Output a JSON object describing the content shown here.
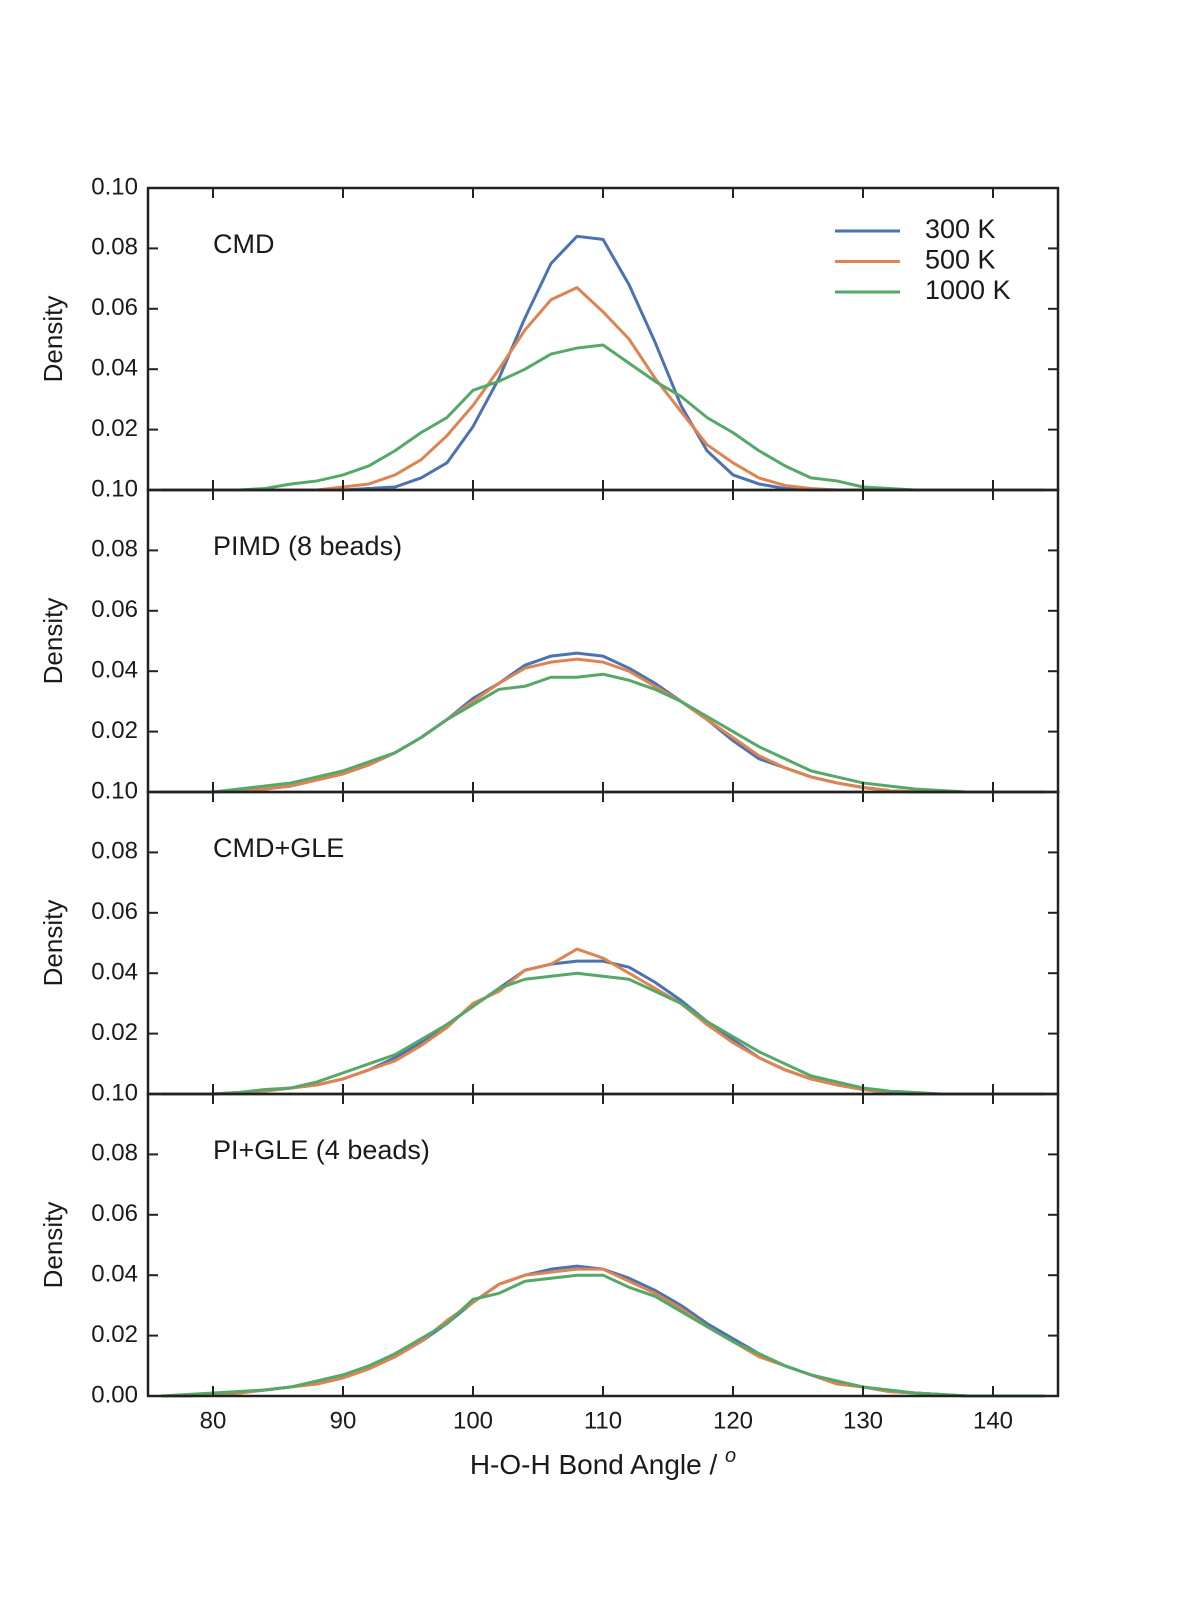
{
  "chart_data": [
    {
      "type": "line",
      "label": "CMD",
      "ylabel": "Density",
      "legend": "upper right",
      "x": [
        76,
        78,
        80,
        82,
        84,
        86,
        88,
        90,
        92,
        94,
        96,
        98,
        100,
        102,
        104,
        106,
        108,
        110,
        112,
        114,
        116,
        118,
        120,
        122,
        124,
        126,
        128,
        130,
        132,
        134,
        136,
        138,
        140,
        142,
        144
      ],
      "series": [
        {
          "name": "300 K",
          "color": "#4c72b0",
          "values": [
            0,
            0,
            0,
            0,
            0,
            0,
            0,
            0,
            0.0005,
            0.001,
            0.004,
            0.009,
            0.021,
            0.037,
            0.057,
            0.075,
            0.084,
            0.083,
            0.068,
            0.049,
            0.028,
            0.013,
            0.005,
            0.002,
            0.0005,
            0,
            0,
            0,
            0,
            0,
            0,
            0,
            0,
            0,
            0
          ]
        },
        {
          "name": "500 K",
          "color": "#dd8452",
          "values": [
            0,
            0,
            0,
            0,
            0,
            0,
            0,
            0.001,
            0.002,
            0.005,
            0.01,
            0.018,
            0.028,
            0.04,
            0.053,
            0.063,
            0.067,
            0.059,
            0.05,
            0.037,
            0.026,
            0.015,
            0.009,
            0.004,
            0.0015,
            0.0005,
            0,
            0,
            0,
            0,
            0,
            0,
            0,
            0,
            0
          ]
        },
        {
          "name": "1000 K",
          "color": "#55a868",
          "values": [
            0,
            0,
            0,
            0,
            0.0005,
            0.002,
            0.003,
            0.005,
            0.008,
            0.013,
            0.019,
            0.024,
            0.033,
            0.036,
            0.04,
            0.045,
            0.047,
            0.048,
            0.042,
            0.036,
            0.031,
            0.024,
            0.019,
            0.013,
            0.008,
            0.004,
            0.003,
            0.001,
            0.0005,
            0,
            0,
            0,
            0,
            0,
            0
          ]
        }
      ],
      "xlim": [
        75,
        145
      ],
      "ylim": [
        0,
        0.1
      ],
      "yticks": [
        {
          "value": 0.02,
          "label": "0.02"
        },
        {
          "value": 0.04,
          "label": "0.04"
        },
        {
          "value": 0.06,
          "label": "0.06"
        },
        {
          "value": 0.08,
          "label": "0.08"
        },
        {
          "value": 0.1,
          "label": "0.10"
        }
      ]
    },
    {
      "type": "line",
      "label": "PIMD (8 beads)",
      "ylabel": "Density",
      "x": [
        76,
        78,
        80,
        82,
        84,
        86,
        88,
        90,
        92,
        94,
        96,
        98,
        100,
        102,
        104,
        106,
        108,
        110,
        112,
        114,
        116,
        118,
        120,
        122,
        124,
        126,
        128,
        130,
        132,
        134,
        136,
        138,
        140,
        142,
        144
      ],
      "series": [
        {
          "color": "#4c72b0",
          "values": [
            0,
            0,
            0,
            0.0005,
            0.001,
            0.002,
            0.004,
            0.006,
            0.009,
            0.013,
            0.018,
            0.024,
            0.031,
            0.036,
            0.042,
            0.045,
            0.046,
            0.045,
            0.041,
            0.036,
            0.03,
            0.024,
            0.017,
            0.011,
            0.008,
            0.005,
            0.003,
            0.0015,
            0.0005,
            0,
            0,
            0,
            0,
            0,
            0
          ]
        },
        {
          "color": "#dd8452",
          "values": [
            0,
            0,
            0,
            0.0005,
            0.001,
            0.002,
            0.004,
            0.006,
            0.009,
            0.013,
            0.018,
            0.024,
            0.03,
            0.036,
            0.041,
            0.043,
            0.044,
            0.043,
            0.04,
            0.035,
            0.03,
            0.024,
            0.018,
            0.012,
            0.008,
            0.005,
            0.003,
            0.0015,
            0.0005,
            0,
            0,
            0,
            0,
            0,
            0
          ]
        },
        {
          "color": "#55a868",
          "values": [
            0,
            0,
            0,
            0.001,
            0.002,
            0.003,
            0.005,
            0.007,
            0.01,
            0.013,
            0.018,
            0.024,
            0.029,
            0.034,
            0.035,
            0.038,
            0.038,
            0.039,
            0.037,
            0.034,
            0.03,
            0.025,
            0.02,
            0.015,
            0.011,
            0.007,
            0.005,
            0.003,
            0.002,
            0.001,
            0.0005,
            0,
            0,
            0,
            0
          ]
        }
      ],
      "xlim": [
        75,
        145
      ],
      "ylim": [
        0,
        0.1
      ],
      "yticks": [
        {
          "value": 0.02,
          "label": "0.02"
        },
        {
          "value": 0.04,
          "label": "0.04"
        },
        {
          "value": 0.06,
          "label": "0.06"
        },
        {
          "value": 0.08,
          "label": "0.08"
        },
        {
          "value": 0.1,
          "label": "0.10"
        }
      ]
    },
    {
      "type": "line",
      "label": "CMD+GLE",
      "ylabel": "Density",
      "x": [
        76,
        78,
        80,
        82,
        84,
        86,
        88,
        90,
        92,
        94,
        96,
        98,
        100,
        102,
        104,
        106,
        108,
        110,
        112,
        114,
        116,
        118,
        120,
        122,
        124,
        126,
        128,
        130,
        132,
        134,
        136,
        138,
        140,
        142,
        144
      ],
      "series": [
        {
          "color": "#4c72b0",
          "values": [
            0,
            0,
            0,
            0.0005,
            0.001,
            0.002,
            0.003,
            0.005,
            0.008,
            0.012,
            0.017,
            0.023,
            0.029,
            0.035,
            0.041,
            0.043,
            0.044,
            0.044,
            0.042,
            0.037,
            0.031,
            0.024,
            0.018,
            0.012,
            0.008,
            0.005,
            0.003,
            0.0015,
            0.0005,
            0,
            0,
            0,
            0,
            0,
            0
          ]
        },
        {
          "color": "#dd8452",
          "values": [
            0,
            0,
            0,
            0.0005,
            0.001,
            0.002,
            0.003,
            0.005,
            0.008,
            0.011,
            0.016,
            0.022,
            0.03,
            0.034,
            0.041,
            0.043,
            0.048,
            0.045,
            0.04,
            0.035,
            0.03,
            0.023,
            0.017,
            0.012,
            0.008,
            0.005,
            0.003,
            0.0015,
            0.0005,
            0,
            0,
            0,
            0,
            0,
            0
          ]
        },
        {
          "color": "#55a868",
          "values": [
            0,
            0,
            0,
            0.0005,
            0.0015,
            0.002,
            0.004,
            0.007,
            0.01,
            0.013,
            0.018,
            0.023,
            0.029,
            0.035,
            0.038,
            0.039,
            0.04,
            0.039,
            0.038,
            0.034,
            0.03,
            0.024,
            0.019,
            0.014,
            0.01,
            0.006,
            0.004,
            0.002,
            0.001,
            0.0005,
            0,
            0,
            0,
            0,
            0
          ]
        }
      ],
      "xlim": [
        75,
        145
      ],
      "ylim": [
        0,
        0.1
      ],
      "yticks": [
        {
          "value": 0.02,
          "label": "0.02"
        },
        {
          "value": 0.04,
          "label": "0.04"
        },
        {
          "value": 0.06,
          "label": "0.06"
        },
        {
          "value": 0.08,
          "label": "0.08"
        },
        {
          "value": 0.1,
          "label": "0.10"
        }
      ]
    },
    {
      "type": "line",
      "label": "PI+GLE (4 beads)",
      "ylabel": "Density",
      "xlabel": "H-O-H Bond Angle / ",
      "xlabel_unit": "o",
      "x": [
        76,
        78,
        80,
        82,
        84,
        86,
        88,
        90,
        92,
        94,
        96,
        98,
        100,
        102,
        104,
        106,
        108,
        110,
        112,
        114,
        116,
        118,
        120,
        122,
        124,
        126,
        128,
        130,
        132,
        134,
        136,
        138,
        140,
        142,
        144
      ],
      "series": [
        {
          "color": "#4c72b0",
          "values": [
            0,
            0,
            0.0005,
            0.001,
            0.002,
            0.003,
            0.004,
            0.006,
            0.009,
            0.013,
            0.018,
            0.024,
            0.031,
            0.037,
            0.04,
            0.042,
            0.043,
            0.042,
            0.039,
            0.035,
            0.03,
            0.024,
            0.019,
            0.014,
            0.01,
            0.007,
            0.004,
            0.003,
            0.0015,
            0.001,
            0.0005,
            0,
            0,
            0,
            0
          ]
        },
        {
          "color": "#dd8452",
          "values": [
            0,
            0,
            0.0005,
            0.001,
            0.002,
            0.003,
            0.004,
            0.006,
            0.009,
            0.013,
            0.018,
            0.025,
            0.031,
            0.037,
            0.04,
            0.041,
            0.042,
            0.042,
            0.038,
            0.034,
            0.029,
            0.023,
            0.018,
            0.013,
            0.01,
            0.007,
            0.004,
            0.003,
            0.0015,
            0.001,
            0.0005,
            0,
            0,
            0,
            0
          ]
        },
        {
          "color": "#55a868",
          "values": [
            0,
            0.0005,
            0.001,
            0.0015,
            0.002,
            0.003,
            0.005,
            0.007,
            0.01,
            0.014,
            0.019,
            0.024,
            0.032,
            0.034,
            0.038,
            0.039,
            0.04,
            0.04,
            0.036,
            0.033,
            0.028,
            0.023,
            0.018,
            0.014,
            0.01,
            0.007,
            0.005,
            0.003,
            0.002,
            0.001,
            0.0005,
            0,
            0,
            0,
            0
          ]
        }
      ],
      "xlim": [
        75,
        145
      ],
      "ylim": [
        0,
        0.1
      ],
      "xticks": [
        80,
        90,
        100,
        110,
        120,
        130,
        140
      ],
      "yticks": [
        {
          "value": 0,
          "label": "0.00"
        },
        {
          "value": 0.02,
          "label": "0.02"
        },
        {
          "value": 0.04,
          "label": "0.04"
        },
        {
          "value": 0.06,
          "label": "0.06"
        },
        {
          "value": 0.08,
          "label": "0.08"
        },
        {
          "value": 0.1,
          "label": "0.10"
        }
      ]
    }
  ]
}
